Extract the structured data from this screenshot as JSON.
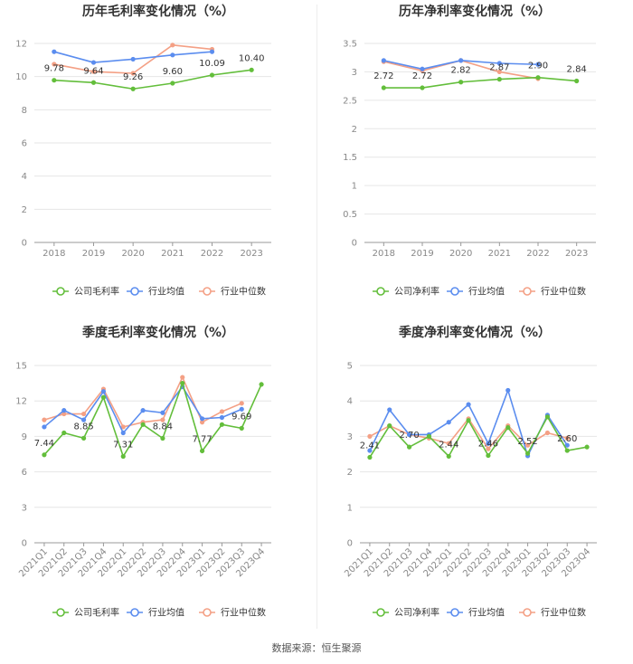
{
  "footer": "数据来源：恒生聚源",
  "colors": {
    "company": "#63BE3B",
    "industry_avg": "#5B8DEF",
    "industry_median": "#F4A085"
  },
  "chart_data": [
    {
      "id": "annual-gross",
      "type": "line",
      "title": "历年毛利率变化情况（%）",
      "categories": [
        "2018",
        "2019",
        "2020",
        "2021",
        "2022",
        "2023"
      ],
      "ylim": [
        0,
        12
      ],
      "yticks": [
        0,
        2,
        4,
        6,
        8,
        10,
        12
      ],
      "series": [
        {
          "name": "公司毛利率",
          "key": "company",
          "values": [
            9.78,
            9.64,
            9.26,
            9.6,
            10.09,
            10.4
          ]
        },
        {
          "name": "行业均值",
          "key": "industry_avg",
          "values": [
            11.5,
            10.85,
            11.05,
            11.3,
            11.5,
            null
          ]
        },
        {
          "name": "行业中位数",
          "key": "industry_median",
          "values": [
            10.75,
            10.3,
            10.2,
            11.9,
            11.65,
            null
          ]
        }
      ],
      "labels": [
        "9.78",
        "9.64",
        "9.26",
        "9.60",
        "10.09",
        "10.40"
      ],
      "label_mode": "all"
    },
    {
      "id": "annual-net",
      "type": "line",
      "title": "历年净利率变化情况（%）",
      "categories": [
        "2018",
        "2019",
        "2020",
        "2021",
        "2022",
        "2023"
      ],
      "ylim": [
        0,
        3.5
      ],
      "yticks": [
        0,
        0.5,
        1,
        1.5,
        2,
        2.5,
        3,
        3.5
      ],
      "series": [
        {
          "name": "公司净利率",
          "key": "company",
          "values": [
            2.72,
            2.72,
            2.82,
            2.87,
            2.9,
            2.84
          ]
        },
        {
          "name": "行业均值",
          "key": "industry_avg",
          "values": [
            3.2,
            3.05,
            3.2,
            3.15,
            3.13,
            null
          ]
        },
        {
          "name": "行业中位数",
          "key": "industry_median",
          "values": [
            3.18,
            3.02,
            3.2,
            3.0,
            2.88,
            null
          ]
        }
      ],
      "labels": [
        "2.72",
        "2.72",
        "2.82",
        "2.87",
        "2.90",
        "2.84"
      ],
      "label_mode": "all"
    },
    {
      "id": "quarterly-gross",
      "type": "line",
      "title": "季度毛利率变化情况（%）",
      "categories": [
        "2021Q1",
        "2021Q2",
        "2021Q3",
        "2021Q4",
        "2022Q1",
        "2022Q2",
        "2022Q3",
        "2022Q4",
        "2023Q1",
        "2023Q2",
        "2023Q3",
        "2023Q4"
      ],
      "ylim": [
        0,
        15
      ],
      "yticks": [
        0,
        3,
        6,
        9,
        12,
        15
      ],
      "series": [
        {
          "name": "公司毛利率",
          "key": "company",
          "values": [
            7.44,
            9.3,
            8.85,
            12.3,
            7.31,
            10.0,
            8.84,
            13.5,
            7.77,
            10.0,
            9.69,
            13.4
          ]
        },
        {
          "name": "行业均值",
          "key": "industry_avg",
          "values": [
            9.8,
            11.2,
            10.4,
            12.8,
            9.3,
            11.2,
            11.0,
            13.2,
            10.5,
            10.6,
            11.3,
            null
          ]
        },
        {
          "name": "行业中位数",
          "key": "industry_median",
          "values": [
            10.4,
            10.9,
            10.9,
            13.0,
            9.8,
            10.2,
            10.4,
            14.0,
            10.2,
            11.1,
            11.8,
            null
          ]
        }
      ],
      "labels": [
        "7.44",
        "",
        "8.85",
        "",
        "7.31",
        "",
        "8.84",
        "",
        "7.77",
        "",
        "9.69",
        ""
      ],
      "label_mode": "sparse"
    },
    {
      "id": "quarterly-net",
      "type": "line",
      "title": "季度净利率变化情况（%）",
      "categories": [
        "2021Q1",
        "2021Q2",
        "2021Q3",
        "2021Q4",
        "2022Q1",
        "2022Q2",
        "2022Q3",
        "2022Q4",
        "2023Q1",
        "2023Q2",
        "2023Q3",
        "2023Q4"
      ],
      "ylim": [
        0,
        5
      ],
      "yticks": [
        0,
        1,
        2,
        3,
        4,
        5
      ],
      "series": [
        {
          "name": "公司净利率",
          "key": "company",
          "values": [
            2.41,
            3.3,
            2.7,
            3.0,
            2.44,
            3.45,
            2.46,
            3.25,
            2.52,
            3.55,
            2.6,
            2.7
          ]
        },
        {
          "name": "行业均值",
          "key": "industry_avg",
          "values": [
            2.6,
            3.75,
            3.05,
            3.05,
            3.4,
            3.9,
            2.8,
            4.3,
            2.45,
            3.6,
            2.75,
            null
          ]
        },
        {
          "name": "行业中位数",
          "key": "industry_median",
          "values": [
            3.0,
            3.3,
            3.05,
            2.95,
            2.8,
            3.5,
            2.65,
            3.3,
            2.75,
            3.1,
            2.95,
            null
          ]
        }
      ],
      "labels": [
        "2.41",
        "",
        "2.70",
        "",
        "2.44",
        "",
        "2.46",
        "",
        "2.52",
        "",
        "2.60",
        ""
      ],
      "label_mode": "sparse"
    }
  ]
}
